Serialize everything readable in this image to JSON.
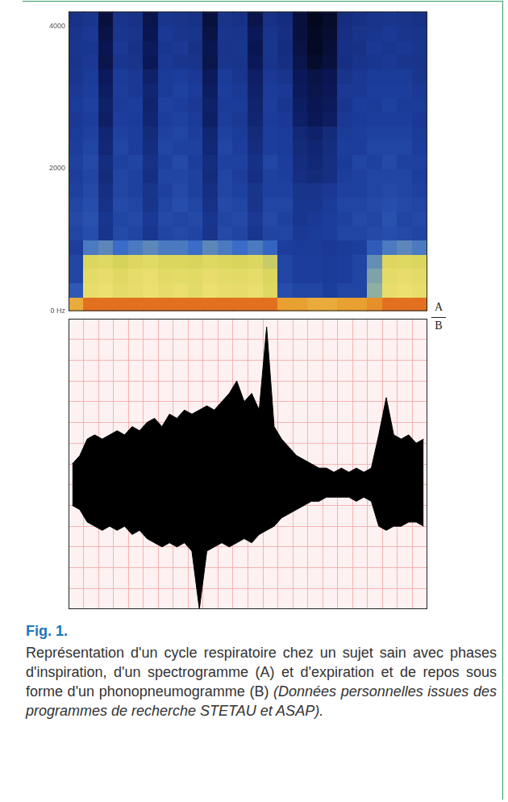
{
  "figure": {
    "label": "Fig. 1.",
    "caption": "Représentation d'un cycle respiratoire chez un sujet sain avec phases d'inspiration, d'un spectrogramme (A) et d'expiration et de repos sous forme d'un phonopneumogramme (B)",
    "source": "(Données personnelles issues des programmes de recherche STETAU et ASAP)."
  },
  "chart_data": [
    {
      "type": "heatmap",
      "panel_label": "A",
      "xlim": [
        0,
        24
      ],
      "ylim": [
        0,
        4200
      ],
      "yticks": [
        {
          "value": 0,
          "label": "0 Hz"
        },
        2000,
        4000
      ],
      "tick_labels": "y",
      "grid": false,
      "zlim": [
        0,
        100
      ],
      "cells": [
        [
          80,
          88,
          88,
          88,
          88,
          88,
          88,
          88,
          88,
          88,
          88,
          88,
          88,
          88,
          82,
          82,
          80,
          80,
          82,
          82,
          84,
          88,
          88,
          88
        ],
        [
          35,
          68,
          70,
          66,
          68,
          70,
          67,
          69,
          66,
          70,
          68,
          67,
          69,
          64,
          32,
          30,
          30,
          28,
          30,
          30,
          50,
          68,
          70,
          68
        ],
        [
          30,
          66,
          68,
          64,
          67,
          69,
          65,
          66,
          65,
          68,
          66,
          65,
          67,
          62,
          30,
          28,
          28,
          27,
          28,
          30,
          48,
          66,
          68,
          66
        ],
        [
          30,
          62,
          64,
          60,
          63,
          65,
          62,
          62,
          61,
          64,
          62,
          61,
          63,
          58,
          30,
          28,
          28,
          27,
          28,
          30,
          45,
          63,
          64,
          62
        ],
        [
          28,
          42,
          44,
          40,
          42,
          44,
          42,
          42,
          40,
          44,
          42,
          40,
          42,
          38,
          28,
          27,
          27,
          26,
          27,
          28,
          36,
          42,
          44,
          42
        ],
        [
          30,
          32,
          24,
          31,
          30,
          25,
          30,
          31,
          30,
          24,
          31,
          30,
          25,
          30,
          30,
          26,
          27,
          28,
          30,
          30,
          31,
          32,
          31,
          30
        ],
        [
          31,
          33,
          25,
          30,
          31,
          26,
          31,
          30,
          31,
          25,
          30,
          31,
          26,
          31,
          29,
          25,
          26,
          28,
          29,
          31,
          30,
          33,
          30,
          31
        ],
        [
          30,
          32,
          23,
          31,
          30,
          24,
          30,
          32,
          30,
          23,
          31,
          30,
          24,
          30,
          30,
          25,
          25,
          27,
          30,
          30,
          31,
          32,
          31,
          30
        ],
        [
          29,
          31,
          22,
          30,
          29,
          24,
          29,
          31,
          29,
          22,
          30,
          29,
          24,
          29,
          29,
          24,
          24,
          26,
          29,
          29,
          30,
          31,
          30,
          29
        ],
        [
          28,
          30,
          20,
          30,
          29,
          22,
          30,
          30,
          29,
          20,
          30,
          28,
          22,
          29,
          28,
          22,
          20,
          22,
          28,
          29,
          30,
          30,
          30,
          28
        ],
        [
          29,
          31,
          21,
          29,
          30,
          23,
          29,
          31,
          28,
          21,
          29,
          29,
          23,
          30,
          28,
          21,
          19,
          22,
          27,
          30,
          29,
          31,
          29,
          29
        ],
        [
          28,
          30,
          19,
          30,
          28,
          21,
          30,
          29,
          29,
          19,
          30,
          28,
          21,
          28,
          27,
          20,
          18,
          21,
          28,
          28,
          30,
          30,
          30,
          28
        ],
        [
          27,
          29,
          18,
          29,
          28,
          20,
          29,
          30,
          28,
          18,
          29,
          27,
          20,
          28,
          27,
          19,
          16,
          20,
          27,
          28,
          29,
          29,
          29,
          27
        ],
        [
          26,
          28,
          15,
          28,
          27,
          18,
          28,
          29,
          27,
          15,
          28,
          26,
          18,
          27,
          26,
          15,
          12,
          14,
          26,
          27,
          28,
          28,
          28,
          26
        ],
        [
          27,
          29,
          16,
          27,
          28,
          17,
          29,
          28,
          26,
          16,
          27,
          27,
          17,
          28,
          25,
          14,
          11,
          13,
          25,
          28,
          27,
          29,
          27,
          27
        ],
        [
          26,
          28,
          14,
          28,
          26,
          18,
          27,
          29,
          27,
          14,
          28,
          26,
          16,
          27,
          26,
          13,
          10,
          12,
          26,
          26,
          28,
          28,
          28,
          26
        ],
        [
          25,
          27,
          13,
          27,
          26,
          16,
          27,
          28,
          26,
          13,
          27,
          25,
          15,
          26,
          24,
          12,
          9,
          11,
          24,
          26,
          27,
          27,
          27,
          25
        ],
        [
          24,
          26,
          10,
          25,
          24,
          12,
          26,
          25,
          24,
          10,
          25,
          24,
          12,
          24,
          22,
          10,
          5,
          8,
          22,
          24,
          25,
          26,
          25,
          24
        ],
        [
          25,
          25,
          11,
          26,
          23,
          13,
          25,
          26,
          23,
          11,
          24,
          25,
          11,
          25,
          21,
          9,
          4,
          7,
          23,
          23,
          26,
          25,
          26,
          25
        ],
        [
          24,
          26,
          9,
          25,
          24,
          11,
          26,
          25,
          24,
          9,
          25,
          24,
          12,
          24,
          22,
          8,
          4,
          6,
          22,
          24,
          25,
          26,
          25,
          24
        ],
        [
          23,
          25,
          8,
          24,
          23,
          10,
          25,
          24,
          23,
          8,
          24,
          23,
          10,
          23,
          21,
          8,
          3,
          5,
          21,
          23,
          24,
          25,
          24,
          23
        ]
      ]
    },
    {
      "type": "area",
      "panel_label": "B",
      "xlim": [
        0,
        24
      ],
      "ylim": [
        -1.5,
        2
      ],
      "xticks": [
        0,
        1,
        2,
        3,
        4,
        5,
        6,
        7,
        8,
        9,
        10,
        11,
        12,
        13,
        14,
        15,
        16,
        17,
        18,
        19,
        20,
        21,
        22,
        23,
        24
      ],
      "yticks": [
        -1.5,
        -1.25,
        -1,
        -0.75,
        -0.5,
        -0.25,
        0,
        0.25,
        0.5,
        0.75,
        1,
        1.25,
        1.5,
        1.75,
        2
      ],
      "tick_labels": false,
      "grid": true,
      "x": [
        0.25,
        0.75,
        1.25,
        1.75,
        2.25,
        2.75,
        3.25,
        3.75,
        4.25,
        4.75,
        5.25,
        5.75,
        6.25,
        6.75,
        7.25,
        7.75,
        8.25,
        8.75,
        9.25,
        9.75,
        10.25,
        10.75,
        11.25,
        11.75,
        12.25,
        12.75,
        13.25,
        13.75,
        14.25,
        14.75,
        15.25,
        15.75,
        16.25,
        16.75,
        17.25,
        17.75,
        18.25,
        18.75,
        19.25,
        19.75,
        20.25,
        20.75,
        21.25,
        21.75,
        22.25,
        22.75,
        23.25,
        23.75
      ],
      "series": [
        {
          "color": "#000000",
          "values": [
            0.25,
            0.35,
            0.55,
            0.6,
            0.55,
            0.6,
            0.65,
            0.6,
            0.7,
            0.65,
            0.75,
            0.8,
            0.7,
            0.85,
            0.8,
            0.9,
            0.85,
            0.9,
            0.95,
            0.9,
            1.0,
            1.1,
            1.25,
            1.0,
            1.1,
            0.9,
            1.9,
            0.7,
            0.55,
            0.45,
            0.35,
            0.3,
            0.25,
            0.2,
            0.2,
            0.15,
            0.2,
            0.15,
            0.2,
            0.15,
            0.2,
            0.6,
            1.05,
            0.6,
            0.55,
            0.6,
            0.5,
            0.55
          ]
        },
        {
          "color": "#000000",
          "values": [
            -0.25,
            -0.3,
            -0.45,
            -0.5,
            -0.55,
            -0.5,
            -0.55,
            -0.5,
            -0.6,
            -0.55,
            -0.65,
            -0.7,
            -0.75,
            -0.7,
            -0.75,
            -0.7,
            -0.8,
            -1.5,
            -0.8,
            -0.75,
            -0.7,
            -0.75,
            -0.7,
            -0.65,
            -0.7,
            -0.6,
            -0.55,
            -0.5,
            -0.4,
            -0.35,
            -0.3,
            -0.25,
            -0.2,
            -0.2,
            -0.15,
            -0.15,
            -0.15,
            -0.15,
            -0.2,
            -0.15,
            -0.2,
            -0.5,
            -0.55,
            -0.5,
            -0.5,
            -0.45,
            -0.45,
            -0.5
          ]
        }
      ]
    }
  ]
}
